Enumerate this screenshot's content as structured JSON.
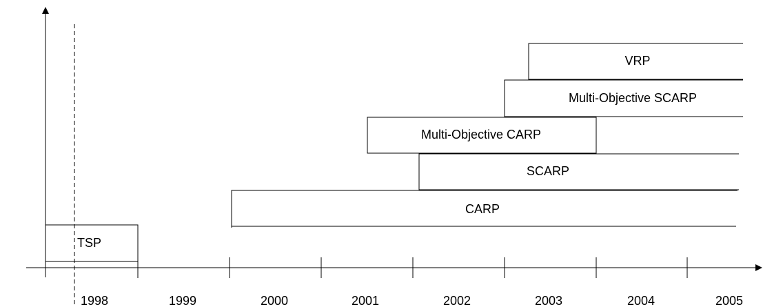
{
  "timeline": {
    "years": [
      1998,
      1999,
      2000,
      2001,
      2002,
      2003,
      2004,
      2005
    ],
    "items": [
      {
        "label": "TSP"
      },
      {
        "label": "CARP"
      },
      {
        "label": "SCARP"
      },
      {
        "label": "Multi-Objective CARP"
      },
      {
        "label": "Multi-Objective SCARP"
      },
      {
        "label": "VRP"
      }
    ]
  }
}
